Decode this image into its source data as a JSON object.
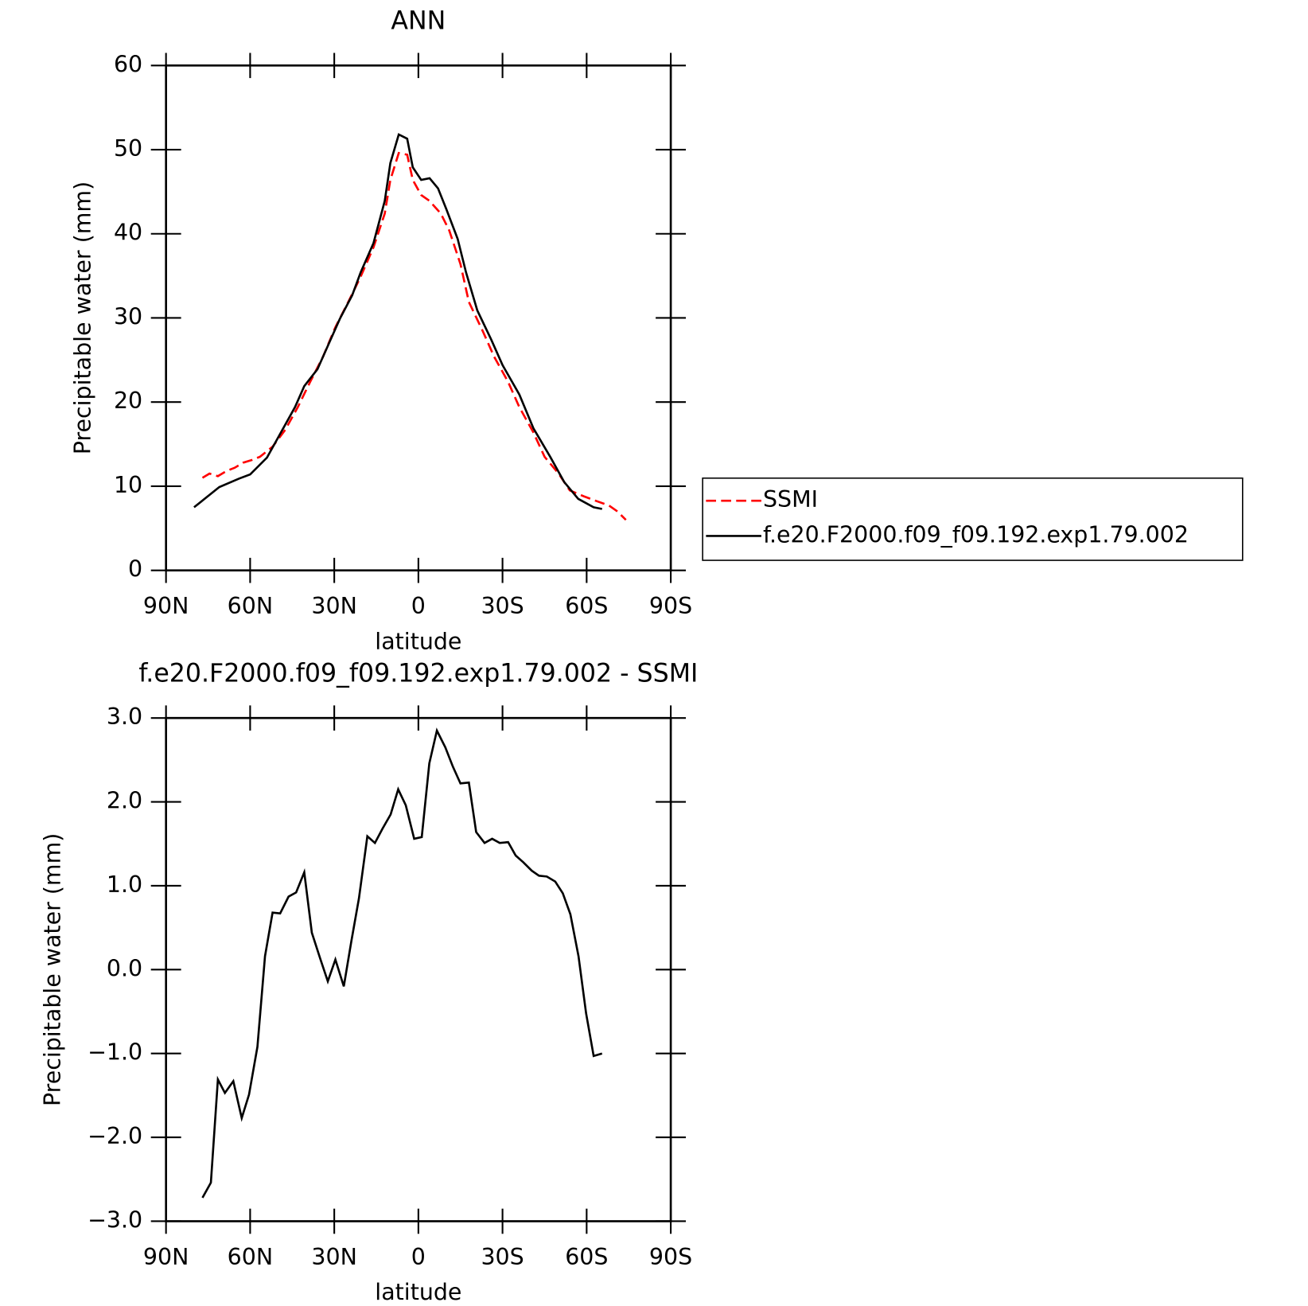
{
  "chart_data": [
    {
      "type": "line",
      "title": "ANN",
      "xlabel": "latitude",
      "ylabel": "Precipitable water (mm)",
      "xlim": [
        90,
        -90
      ],
      "xticks": [
        {
          "value": 90,
          "label": "90N"
        },
        {
          "value": 60,
          "label": "60N"
        },
        {
          "value": 30,
          "label": "30N"
        },
        0,
        {
          "value": -30,
          "label": "30S"
        },
        {
          "value": -60,
          "label": "60S"
        },
        {
          "value": -90,
          "label": "90S"
        }
      ],
      "ylim": [
        0,
        60
      ],
      "yticks": [
        0,
        10,
        20,
        30,
        40,
        50,
        60
      ],
      "legend": "right",
      "series": [
        {
          "name": "SSMI",
          "color": "#ff0000",
          "style": "dashed",
          "x": [
            77,
            74.5,
            71.5,
            68.5,
            65.5,
            62.5,
            59.5,
            56.5,
            52,
            47.5,
            43,
            38.6,
            34,
            29.6,
            25,
            20.6,
            16,
            12,
            10,
            7,
            4,
            2,
            -1,
            -4,
            -8,
            -11,
            -15,
            -18,
            -23,
            -27,
            -32,
            -36,
            -41,
            -45,
            -50,
            -54,
            -59,
            -63,
            -68,
            -71,
            -74
          ],
          "values": [
            11.0,
            11.5,
            11.2,
            11.8,
            12.2,
            12.8,
            13.1,
            13.5,
            14.7,
            16.7,
            19.4,
            22.4,
            25.4,
            28.9,
            31.9,
            34.9,
            38.4,
            42.4,
            46.4,
            49.6,
            49.4,
            46.4,
            44.6,
            43.9,
            42.4,
            40.4,
            36.4,
            31.9,
            28.4,
            25.4,
            22.4,
            19.4,
            16.4,
            13.5,
            11.5,
            9.5,
            8.8,
            8.3,
            7.7,
            7.0,
            6.0
          ]
        },
        {
          "name": "f.e20.F2000.f09_f09.192.exp1.79.002",
          "color": "#000000",
          "style": "solid",
          "x": [
            80,
            71,
            64,
            60,
            54,
            49,
            44,
            40.7,
            36,
            32,
            28,
            23.6,
            20.6,
            16,
            12,
            10,
            7,
            4,
            2,
            -1,
            -4,
            -7,
            -10,
            -14,
            -17,
            -21,
            -26,
            -30,
            -36,
            -41,
            -47,
            -52,
            -57,
            -62.5,
            -65.5
          ],
          "values": [
            7.5,
            9.9,
            10.9,
            11.4,
            13.4,
            16.4,
            19.4,
            21.9,
            23.9,
            26.9,
            29.9,
            32.7,
            35.4,
            38.9,
            43.9,
            48.4,
            51.8,
            51.3,
            47.9,
            46.4,
            46.6,
            45.4,
            42.9,
            39.4,
            35.4,
            30.9,
            27.4,
            24.4,
            20.9,
            16.9,
            13.5,
            10.5,
            8.5,
            7.5,
            7.3
          ]
        }
      ]
    },
    {
      "type": "line",
      "title": "f.e20.F2000.f09_f09.192.exp1.79.002 - SSMI",
      "xlabel": "latitude",
      "ylabel": "Precipitable water (mm)",
      "xlim": [
        90,
        -90
      ],
      "xticks": [
        {
          "value": 90,
          "label": "90N"
        },
        {
          "value": 60,
          "label": "60N"
        },
        {
          "value": 30,
          "label": "30N"
        },
        0,
        {
          "value": -30,
          "label": "30S"
        },
        {
          "value": -60,
          "label": "60S"
        },
        {
          "value": -90,
          "label": "90S"
        }
      ],
      "ylim": [
        -3,
        3
      ],
      "yticks": [
        {
          "value": -3,
          "label": "−3.0"
        },
        {
          "value": -2,
          "label": "−2.0"
        },
        {
          "value": -1,
          "label": "−1.0"
        },
        {
          "value": 0,
          "label": "0.0"
        },
        {
          "value": 1,
          "label": "1.0"
        },
        {
          "value": 2,
          "label": "2.0"
        },
        {
          "value": 3,
          "label": "3.0"
        }
      ],
      "series": [
        {
          "color": "#000000",
          "style": "solid",
          "x": [
            77,
            74,
            71.5,
            69,
            66,
            63,
            60.4,
            57.4,
            54.7,
            52,
            49.3,
            46.3,
            43.6,
            40.7,
            38,
            35,
            32.3,
            29.6,
            26.6,
            23.9,
            21.2,
            18.2,
            15.5,
            12.8,
            9.9,
            7.2,
            4.5,
            1.5,
            -1.2,
            -3.9,
            -6.6,
            -9.6,
            -12.3,
            -15,
            -18,
            -20.6,
            -23.6,
            -26.3,
            -29,
            -32,
            -34.7,
            -37.4,
            -40.4,
            -43,
            -45.8,
            -48.8,
            -51.5,
            -54.2,
            -57.1,
            -59.8,
            -62.5,
            -65.5
          ],
          "values": [
            -2.72,
            -2.54,
            -1.31,
            -1.47,
            -1.33,
            -1.77,
            -1.49,
            -0.92,
            0.16,
            0.68,
            0.67,
            0.87,
            0.92,
            1.16,
            0.44,
            0.13,
            -0.14,
            0.12,
            -0.2,
            0.34,
            0.85,
            1.59,
            1.51,
            1.68,
            1.85,
            2.15,
            1.96,
            1.56,
            1.58,
            2.46,
            2.85,
            2.65,
            2.42,
            2.22,
            2.23,
            1.64,
            1.51,
            1.56,
            1.51,
            1.52,
            1.36,
            1.28,
            1.18,
            1.12,
            1.11,
            1.05,
            0.91,
            0.66,
            0.16,
            -0.52,
            -1.03,
            -1.0
          ]
        }
      ]
    }
  ]
}
